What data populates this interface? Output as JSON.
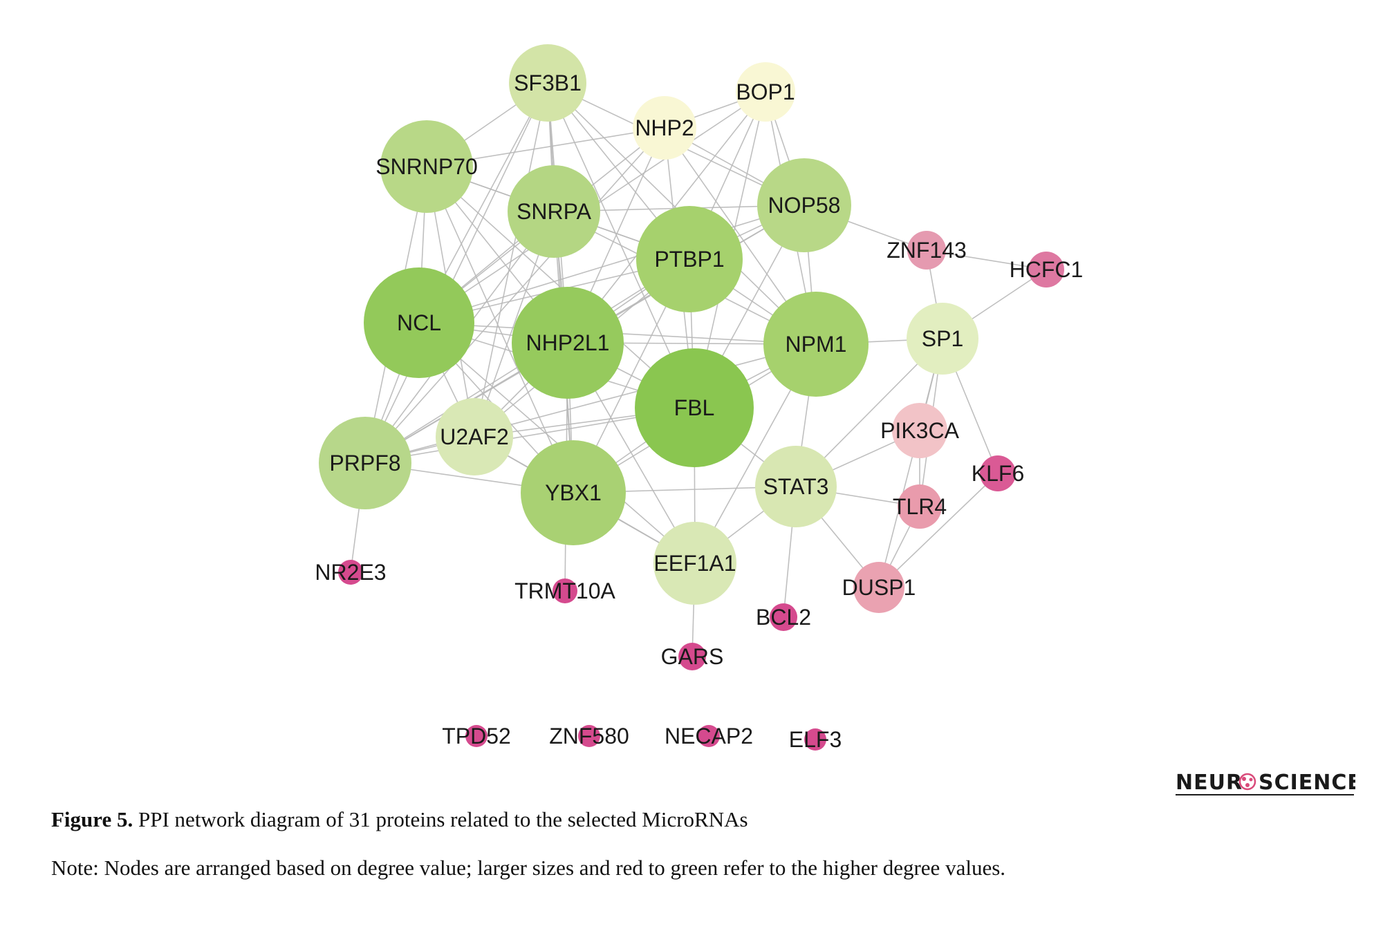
{
  "diagram": {
    "nodes": [
      {
        "id": "SF3B1",
        "label": "SF3B1",
        "color": "#d3e4a7"
      },
      {
        "id": "BOP1",
        "label": "BOP1",
        "color": "#f9f7d4"
      },
      {
        "id": "NHP2",
        "label": "NHP2",
        "color": "#f9f7d4"
      },
      {
        "id": "SNRNP70",
        "label": "SNRNP70",
        "color": "#b8d887"
      },
      {
        "id": "SNRPA",
        "label": "SNRPA",
        "color": "#b4d683"
      },
      {
        "id": "NOP58",
        "label": "NOP58",
        "color": "#b8d887"
      },
      {
        "id": "PTBP1",
        "label": "PTBP1",
        "color": "#a6d16d"
      },
      {
        "id": "ZNF143",
        "label": "ZNF143",
        "color": "#e59ab0"
      },
      {
        "id": "HCFC1",
        "label": "HCFC1",
        "color": "#de78a1"
      },
      {
        "id": "NCL",
        "label": "NCL",
        "color": "#93c95a"
      },
      {
        "id": "NHP2L1",
        "label": "NHP2L1",
        "color": "#96ca5d"
      },
      {
        "id": "NPM1",
        "label": "NPM1",
        "color": "#a6d16d"
      },
      {
        "id": "SP1",
        "label": "SP1",
        "color": "#e2eec0"
      },
      {
        "id": "FBL",
        "label": "FBL",
        "color": "#8ac650"
      },
      {
        "id": "U2AF2",
        "label": "U2AF2",
        "color": "#d9e8b5"
      },
      {
        "id": "PRPF8",
        "label": "PRPF8",
        "color": "#b7d78a"
      },
      {
        "id": "PIK3CA",
        "label": "PIK3CA",
        "color": "#f2c3c7"
      },
      {
        "id": "KLF6",
        "label": "KLF6",
        "color": "#da5a95"
      },
      {
        "id": "YBX1",
        "label": "YBX1",
        "color": "#a9d173"
      },
      {
        "id": "STAT3",
        "label": "STAT3",
        "color": "#d8e7b2"
      },
      {
        "id": "TLR4",
        "label": "TLR4",
        "color": "#e99bac"
      },
      {
        "id": "NR2E3",
        "label": "NR2E3",
        "color": "#d54a8e"
      },
      {
        "id": "TRMT10A",
        "label": "TRMT10A",
        "color": "#d54a8e"
      },
      {
        "id": "EEF1A1",
        "label": "EEF1A1",
        "color": "#d9e8b5"
      },
      {
        "id": "DUSP1",
        "label": "DUSP1",
        "color": "#eaa2b1"
      },
      {
        "id": "BCL2",
        "label": "BCL2",
        "color": "#d54a8e"
      },
      {
        "id": "GARS",
        "label": "GARS",
        "color": "#d54a8e"
      },
      {
        "id": "TPD52",
        "label": "TPD52",
        "color": "#d54a8e"
      },
      {
        "id": "ZNF580",
        "label": "ZNF580",
        "color": "#d54a8e"
      },
      {
        "id": "NECAP2",
        "label": "NECAP2",
        "color": "#d54a8e"
      },
      {
        "id": "ELF3",
        "label": "ELF3",
        "color": "#d54a8e"
      }
    ],
    "edges": [
      [
        "SF3B1",
        "SNRNP70"
      ],
      [
        "SF3B1",
        "SNRPA"
      ],
      [
        "SF3B1",
        "NCL"
      ],
      [
        "SF3B1",
        "NHP2L1"
      ],
      [
        "SF3B1",
        "PRPF8"
      ],
      [
        "SF3B1",
        "U2AF2"
      ],
      [
        "SF3B1",
        "YBX1"
      ],
      [
        "SF3B1",
        "PTBP1"
      ],
      [
        "SF3B1",
        "NOP58"
      ],
      [
        "SF3B1",
        "FBL"
      ],
      [
        "SF3B1",
        "NPM1"
      ],
      [
        "NHP2",
        "NCL"
      ],
      [
        "NHP2",
        "NHP2L1"
      ],
      [
        "NHP2",
        "FBL"
      ],
      [
        "NHP2",
        "NOP58"
      ],
      [
        "NHP2",
        "SNRNP70"
      ],
      [
        "NHP2",
        "NPM1"
      ],
      [
        "NHP2",
        "BOP1"
      ],
      [
        "NHP2",
        "PRPF8"
      ],
      [
        "BOP1",
        "NOP58"
      ],
      [
        "BOP1",
        "FBL"
      ],
      [
        "BOP1",
        "NCL"
      ],
      [
        "BOP1",
        "NHP2L1"
      ],
      [
        "BOP1",
        "NPM1"
      ],
      [
        "BOP1",
        "PTBP1"
      ],
      [
        "SNRNP70",
        "SNRPA"
      ],
      [
        "SNRNP70",
        "NCL"
      ],
      [
        "SNRNP70",
        "NHP2L1"
      ],
      [
        "SNRNP70",
        "PRPF8"
      ],
      [
        "SNRNP70",
        "U2AF2"
      ],
      [
        "SNRNP70",
        "YBX1"
      ],
      [
        "SNRNP70",
        "PTBP1"
      ],
      [
        "SNRNP70",
        "FBL"
      ],
      [
        "SNRPA",
        "NCL"
      ],
      [
        "SNRPA",
        "NHP2L1"
      ],
      [
        "SNRPA",
        "PRPF8"
      ],
      [
        "SNRPA",
        "U2AF2"
      ],
      [
        "SNRPA",
        "PTBP1"
      ],
      [
        "SNRPA",
        "YBX1"
      ],
      [
        "SNRPA",
        "NOP58"
      ],
      [
        "SNRPA",
        "NPM1"
      ],
      [
        "NOP58",
        "NCL"
      ],
      [
        "NOP58",
        "FBL"
      ],
      [
        "NOP58",
        "NPM1"
      ],
      [
        "NOP58",
        "NHP2L1"
      ],
      [
        "NOP58",
        "PTBP1"
      ],
      [
        "NOP58",
        "ZNF143"
      ],
      [
        "NOP58",
        "PRPF8"
      ],
      [
        "PTBP1",
        "NCL"
      ],
      [
        "PTBP1",
        "NHP2L1"
      ],
      [
        "PTBP1",
        "FBL"
      ],
      [
        "PTBP1",
        "NPM1"
      ],
      [
        "PTBP1",
        "YBX1"
      ],
      [
        "PTBP1",
        "U2AF2"
      ],
      [
        "PTBP1",
        "PRPF8"
      ],
      [
        "ZNF143",
        "HCFC1"
      ],
      [
        "ZNF143",
        "SP1"
      ],
      [
        "HCFC1",
        "SP1"
      ],
      [
        "NCL",
        "NHP2L1"
      ],
      [
        "NCL",
        "FBL"
      ],
      [
        "NCL",
        "NPM1"
      ],
      [
        "NCL",
        "PRPF8"
      ],
      [
        "NCL",
        "U2AF2"
      ],
      [
        "NCL",
        "YBX1"
      ],
      [
        "NCL",
        "EEF1A1"
      ],
      [
        "NHP2L1",
        "FBL"
      ],
      [
        "NHP2L1",
        "NPM1"
      ],
      [
        "NHP2L1",
        "PRPF8"
      ],
      [
        "NHP2L1",
        "U2AF2"
      ],
      [
        "NHP2L1",
        "YBX1"
      ],
      [
        "NHP2L1",
        "EEF1A1"
      ],
      [
        "NHP2L1",
        "TRMT10A"
      ],
      [
        "NPM1",
        "SP1"
      ],
      [
        "NPM1",
        "FBL"
      ],
      [
        "NPM1",
        "YBX1"
      ],
      [
        "NPM1",
        "STAT3"
      ],
      [
        "NPM1",
        "EEF1A1"
      ],
      [
        "NPM1",
        "PRPF8"
      ],
      [
        "SP1",
        "PIK3CA"
      ],
      [
        "SP1",
        "STAT3"
      ],
      [
        "SP1",
        "KLF6"
      ],
      [
        "SP1",
        "DUSP1"
      ],
      [
        "SP1",
        "TLR4"
      ],
      [
        "FBL",
        "YBX1"
      ],
      [
        "FBL",
        "U2AF2"
      ],
      [
        "FBL",
        "EEF1A1"
      ],
      [
        "FBL",
        "PRPF8"
      ],
      [
        "FBL",
        "STAT3"
      ],
      [
        "U2AF2",
        "PRPF8"
      ],
      [
        "U2AF2",
        "YBX1"
      ],
      [
        "U2AF2",
        "EEF1A1"
      ],
      [
        "PRPF8",
        "YBX1"
      ],
      [
        "PRPF8",
        "NR2E3"
      ],
      [
        "PIK3CA",
        "STAT3"
      ],
      [
        "PIK3CA",
        "TLR4"
      ],
      [
        "KLF6",
        "DUSP1"
      ],
      [
        "YBX1",
        "EEF1A1"
      ],
      [
        "YBX1",
        "STAT3"
      ],
      [
        "STAT3",
        "TLR4"
      ],
      [
        "STAT3",
        "EEF1A1"
      ],
      [
        "STAT3",
        "DUSP1"
      ],
      [
        "STAT3",
        "BCL2"
      ],
      [
        "TLR4",
        "DUSP1"
      ],
      [
        "EEF1A1",
        "GARS"
      ]
    ]
  },
  "logo": {
    "left": "NEUR",
    "right": "SCIENCE",
    "accent_color": "#d94a7a"
  },
  "caption": {
    "label": "Figure 5.",
    "text": " PPI network diagram of 31 proteins related to the selected MicroRNAs"
  },
  "note": {
    "text": "Note: Nodes are arranged based on degree value; larger sizes and red to green refer to the higher degree values."
  }
}
